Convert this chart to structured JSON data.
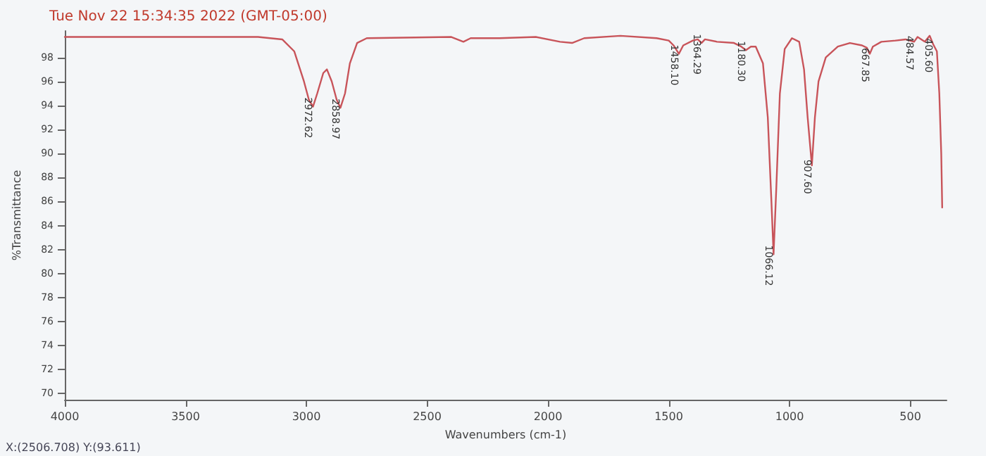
{
  "chart_data": {
    "type": "line",
    "title": "Tue Nov 22 15:34:35 2022 (GMT-05:00)",
    "xlabel": "Wavenumbers (cm-1)",
    "ylabel": "%Transmittance",
    "x": [
      4000,
      3600,
      3200,
      3100,
      3050,
      3010,
      2990,
      2972.62,
      2955,
      2930,
      2915,
      2895,
      2875,
      2858.97,
      2840,
      2820,
      2790,
      2750,
      2400,
      2350,
      2320,
      2200,
      2050,
      1950,
      1900,
      1850,
      1700,
      1550,
      1500,
      1480,
      1458.1,
      1440,
      1400,
      1380,
      1364.29,
      1350,
      1300,
      1230,
      1200,
      1180.3,
      1160,
      1140,
      1110,
      1090,
      1075,
      1066.12,
      1055,
      1040,
      1020,
      990,
      960,
      940,
      925,
      907.6,
      895,
      880,
      850,
      800,
      750,
      700,
      680,
      667.85,
      655,
      620,
      560,
      520,
      484.57,
      470,
      440,
      420,
      405.6,
      390,
      380,
      372,
      368
    ],
    "series": [
      {
        "color": "#c8545a",
        "values": [
          99.7,
          99.7,
          99.7,
          99.5,
          98.5,
          96,
          94.5,
          93.9,
          95,
          96.7,
          97,
          96,
          94.5,
          93.8,
          95,
          97.5,
          99.2,
          99.6,
          99.7,
          99.3,
          99.6,
          99.6,
          99.7,
          99.3,
          99.2,
          99.6,
          99.8,
          99.6,
          99.4,
          99,
          98.3,
          99,
          99.4,
          99.5,
          99.2,
          99.5,
          99.3,
          99.2,
          98.9,
          98.6,
          98.9,
          98.9,
          97.5,
          93,
          86,
          81.6,
          87,
          95,
          98.7,
          99.6,
          99.3,
          97,
          93,
          89,
          93,
          96,
          98,
          98.9,
          99.2,
          99,
          98.8,
          98.3,
          98.9,
          99.3,
          99.4,
          99.5,
          99.3,
          99.7,
          99.3,
          99.8,
          99.1,
          98.5,
          95,
          90,
          85.5
        ]
      }
    ],
    "xlim": [
      4000,
      350
    ],
    "xticks": [
      4000,
      3500,
      3000,
      2500,
      2000,
      1500,
      1000,
      500
    ],
    "ylim": [
      69.5,
      100.2
    ],
    "yticks": [
      70,
      72,
      74,
      76,
      78,
      80,
      82,
      84,
      86,
      88,
      90,
      92,
      94,
      96,
      98
    ],
    "grid": false,
    "marker": "none",
    "line_style": "solid",
    "annotations": [
      {
        "text": "2972.62",
        "x": 2972.62,
        "y": 93.9
      },
      {
        "text": "2858.97",
        "x": 2858.97,
        "y": 93.8
      },
      {
        "text": "1458.10",
        "x": 1458.1,
        "y": 98.3
      },
      {
        "text": "1364.29",
        "x": 1364.29,
        "y": 99.2
      },
      {
        "text": "1180.30",
        "x": 1180.3,
        "y": 98.6
      },
      {
        "text": "1066.12",
        "x": 1066.12,
        "y": 81.6
      },
      {
        "text": "907.60",
        "x": 907.6,
        "y": 89
      },
      {
        "text": "667.85",
        "x": 667.85,
        "y": 98.3
      },
      {
        "text": "484.57",
        "x": 484.57,
        "y": 99.3
      },
      {
        "text": "405.60",
        "x": 405.6,
        "y": 99.1
      },
      "X:(2506.708) Y:(93.611)"
    ]
  }
}
